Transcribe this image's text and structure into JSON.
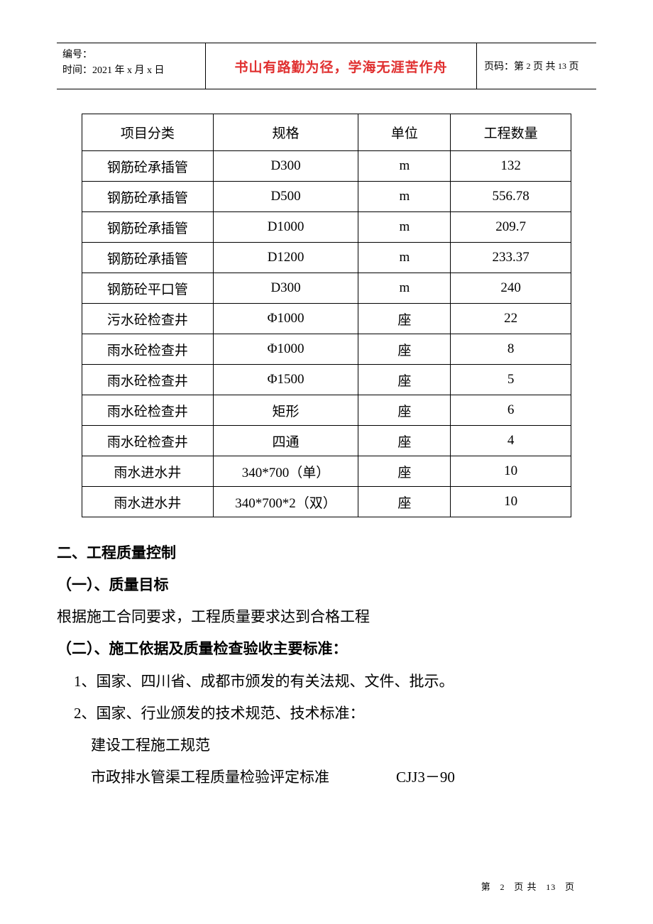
{
  "header": {
    "left_line1": "编号：",
    "left_line2_prefix": "时间：",
    "left_line2_value": "2021 年 x 月 x 日",
    "center": "书山有路勤为径，学海无涯苦作舟",
    "right_prefix": "页码：",
    "right_value_a": "第",
    "right_page": "2",
    "right_value_b": "页  共",
    "right_total": "13",
    "right_value_c": "页"
  },
  "table": {
    "columns": [
      "项目分类",
      "规格",
      "单位",
      "工程数量"
    ],
    "rows": [
      [
        "钢筋砼承插管",
        "D300",
        "m",
        "132"
      ],
      [
        "钢筋砼承插管",
        "D500",
        "m",
        "556.78"
      ],
      [
        "钢筋砼承插管",
        "D1000",
        "m",
        "209.7"
      ],
      [
        "钢筋砼承插管",
        "D1200",
        "m",
        "233.37"
      ],
      [
        "钢筋砼平口管",
        "D300",
        "m",
        "240"
      ],
      [
        "污水砼检查井",
        "Φ1000",
        "座",
        "22"
      ],
      [
        "雨水砼检查井",
        "Φ1000",
        "座",
        "8"
      ],
      [
        "雨水砼检查井",
        "Φ1500",
        "座",
        "5"
      ],
      [
        "雨水砼检查井",
        "矩形",
        "座",
        "6"
      ],
      [
        "雨水砼检查井",
        "四通",
        "座",
        "4"
      ],
      [
        "雨水进水井",
        "340*700（单）",
        "座",
        "10"
      ],
      [
        "雨水进水井",
        "340*700*2（双）",
        "座",
        "10"
      ]
    ]
  },
  "body": {
    "h1": "二、工程质量控制",
    "h2a": "（一）、质量目标",
    "p1": "根据施工合同要求，工程质量要求达到合格工程",
    "h2b": "（二）、施工依据及质量检查验收主要标准：",
    "li1": "1、国家、四川省、成都市颁发的有关法规、文件、批示。",
    "li2": "2、国家、行业颁发的技术规范、技术标准：",
    "li2a": "建设工程施工规范",
    "li2b_name": "市政排水管渠工程质量检验评定标准",
    "li2b_code": "CJJ3－90"
  },
  "footer": {
    "a": "第",
    "page": "2",
    "b": "页 共",
    "total": "13",
    "c": "页"
  }
}
